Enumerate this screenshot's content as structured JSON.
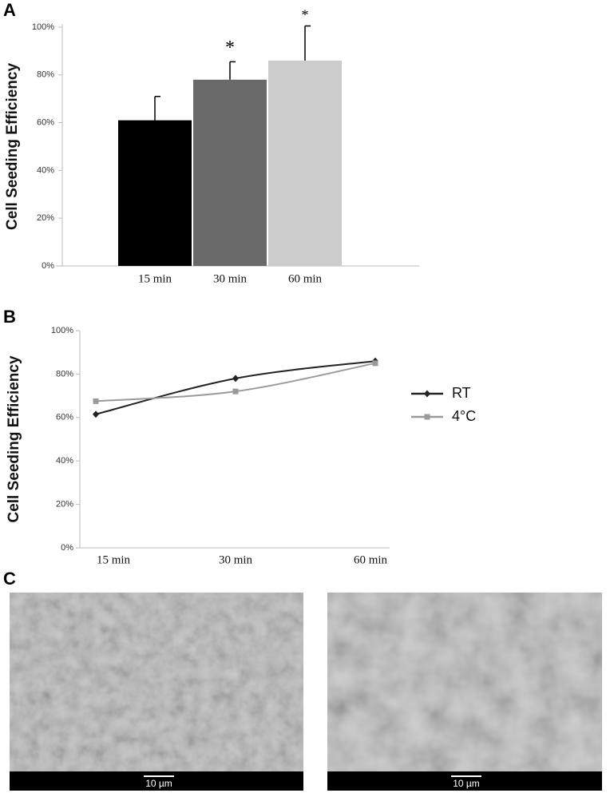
{
  "chart_data": [
    {
      "type": "bar",
      "panel_label": "A",
      "y_label": "Cell Seeding Efficiency",
      "categories": [
        "15 min",
        "30 min",
        "60 min"
      ],
      "values": [
        61,
        78,
        86
      ],
      "errors": [
        10,
        7.5,
        14.5
      ],
      "colors": [
        "#000000",
        "#696969",
        "#cccccc"
      ],
      "value_annotations": [
        null,
        "*",
        "*"
      ],
      "ylim": [
        0,
        100
      ],
      "yticks": [
        {
          "value": 0,
          "label": "0%"
        },
        {
          "value": 20,
          "label": "20%"
        },
        {
          "value": 40,
          "label": "40%"
        },
        {
          "value": 60,
          "label": "60%"
        },
        {
          "value": 80,
          "label": "80%"
        },
        {
          "value": 100,
          "label": "100%"
        }
      ],
      "grid": false
    },
    {
      "type": "line",
      "panel_label": "B",
      "y_label": "Cell Seeding Efficiency",
      "categories": [
        "15 min",
        "30 min",
        "60 min"
      ],
      "series": [
        {
          "name": "RT",
          "color": "#222222",
          "marker": "diamond",
          "values": [
            61.5,
            78,
            86
          ]
        },
        {
          "name": "4°C",
          "color": "#9a9a9a",
          "marker": "square",
          "values": [
            67.5,
            72,
            85
          ]
        }
      ],
      "ylim": [
        0,
        100
      ],
      "yticks": [
        {
          "value": 0,
          "label": "0%"
        },
        {
          "value": 20,
          "label": "20%"
        },
        {
          "value": 40,
          "label": "40%"
        },
        {
          "value": 60,
          "label": "60%"
        },
        {
          "value": 80,
          "label": "80%"
        },
        {
          "value": 100,
          "label": "100%"
        }
      ],
      "legend": "right",
      "grid": false
    }
  ],
  "images": {
    "panel_label": "C",
    "scale_bars": [
      "10 µm",
      "10 µm"
    ]
  }
}
